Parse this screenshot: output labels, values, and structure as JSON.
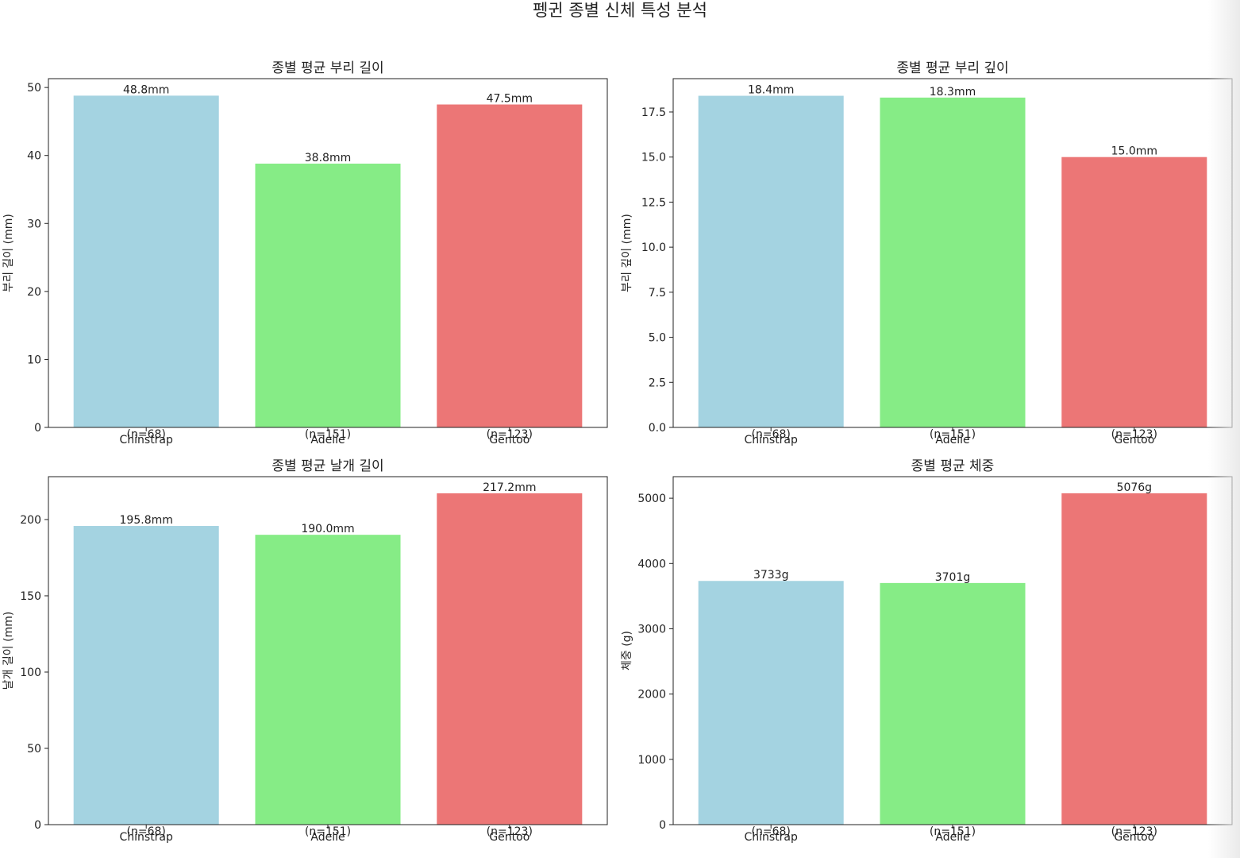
{
  "figure": {
    "title": "펭귄 종별 신체 특성 분석"
  },
  "chart_data": [
    {
      "type": "bar",
      "title": "종별 평균 부리 길이",
      "xlabel": "",
      "ylabel": "부리 길이 (mm)",
      "categories": [
        "Chinstrap",
        "Adelie",
        "Gentoo"
      ],
      "counts": [
        "(n=68)",
        "(n=151)",
        "(n=123)"
      ],
      "values": [
        48.8,
        38.8,
        47.5
      ],
      "value_labels": [
        "48.8mm",
        "38.8mm",
        "47.5mm"
      ],
      "colors": [
        "#a4d3e1",
        "#86ec86",
        "#ec7676"
      ],
      "ylim": [
        0,
        51.3
      ],
      "yticks": [
        0,
        10,
        20,
        30,
        40,
        50
      ],
      "ytick_labels": [
        "0",
        "10",
        "20",
        "30",
        "40",
        "50"
      ],
      "grid": false
    },
    {
      "type": "bar",
      "title": "종별 평균 부리 깊이",
      "xlabel": "",
      "ylabel": "부리 깊이 (mm)",
      "categories": [
        "Chinstrap",
        "Adelie",
        "Gentoo"
      ],
      "counts": [
        "(n=68)",
        "(n=151)",
        "(n=123)"
      ],
      "values": [
        18.4,
        18.3,
        15.0
      ],
      "value_labels": [
        "18.4mm",
        "18.3mm",
        "15.0mm"
      ],
      "colors": [
        "#a4d3e1",
        "#86ec86",
        "#ec7676"
      ],
      "ylim": [
        0,
        19.35
      ],
      "yticks": [
        0,
        2.5,
        5,
        7.5,
        10,
        12.5,
        15,
        17.5
      ],
      "ytick_labels": [
        "0.0",
        "2.5",
        "5.0",
        "7.5",
        "10.0",
        "12.5",
        "15.0",
        "17.5"
      ],
      "grid": false
    },
    {
      "type": "bar",
      "title": "종별 평균 날개 길이",
      "xlabel": "",
      "ylabel": "날개 길이 (mm)",
      "categories": [
        "Chinstrap",
        "Adelie",
        "Gentoo"
      ],
      "counts": [
        "(n=68)",
        "(n=151)",
        "(n=123)"
      ],
      "values": [
        195.8,
        190.0,
        217.2
      ],
      "value_labels": [
        "195.8mm",
        "190.0mm",
        "217.2mm"
      ],
      "colors": [
        "#a4d3e1",
        "#86ec86",
        "#ec7676"
      ],
      "ylim": [
        0,
        228.1
      ],
      "yticks": [
        0,
        50,
        100,
        150,
        200
      ],
      "ytick_labels": [
        "0",
        "50",
        "100",
        "150",
        "200"
      ],
      "grid": false
    },
    {
      "type": "bar",
      "title": "종별 평균 체중",
      "xlabel": "",
      "ylabel": "체중 (g)",
      "categories": [
        "Chinstrap",
        "Adelie",
        "Gentoo"
      ],
      "counts": [
        "(n=68)",
        "(n=151)",
        "(n=123)"
      ],
      "values": [
        3733,
        3701,
        5076
      ],
      "value_labels": [
        "3733g",
        "3701g",
        "5076g"
      ],
      "colors": [
        "#a4d3e1",
        "#86ec86",
        "#ec7676"
      ],
      "ylim": [
        0,
        5330
      ],
      "yticks": [
        0,
        1000,
        2000,
        3000,
        4000,
        5000
      ],
      "ytick_labels": [
        "0",
        "1000",
        "2000",
        "3000",
        "4000",
        "5000"
      ],
      "grid": false
    }
  ]
}
